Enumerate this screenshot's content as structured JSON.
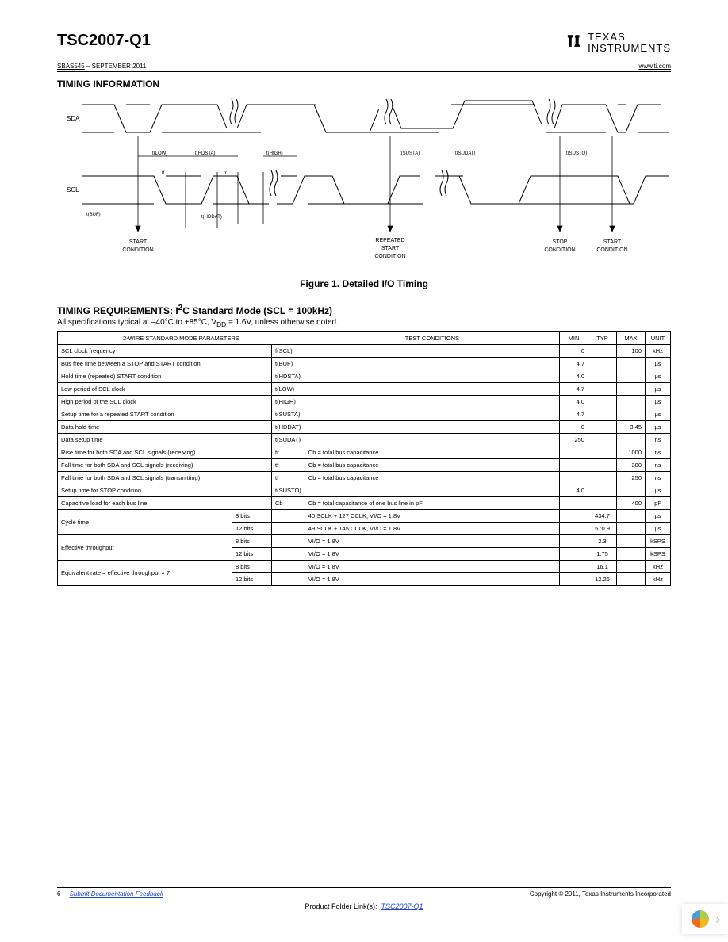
{
  "header": {
    "part_number": "TSC2007-Q1",
    "logo_text_top": "TEXAS",
    "logo_text_bottom": "INSTRUMENTS",
    "doc_id": "SBAS545",
    "doc_date": "– SEPTEMBER 2011",
    "site_url": "www.ti.com"
  },
  "section1": {
    "title": "TIMING INFORMATION",
    "diagram": {
      "sda_label": "SDA",
      "scl_label": "SCL",
      "start_cond": "START\nCONDITION",
      "repeated_start": "REPEATED\nSTART\nCONDITION",
      "stop_cond": "STOP\nCONDITION",
      "start_cond2": "START\nCONDITION",
      "t_buf": "t(BUF)",
      "t_low": "t(LOW)",
      "t_hdsta": "t(HDSTA)",
      "t_hddat": "t(HDDAT)",
      "t_high": "t(HIGH)",
      "t_susta": "t(SUSTA)",
      "t_sudat": "t(SUDAT)",
      "t_susto": "t(SUSTO)",
      "tf": "tf",
      "tr": "tr"
    },
    "caption": "Figure 1. Detailed I/O Timing"
  },
  "section2": {
    "title_prefix": "TIMING REQUIREMENTS: I",
    "title_super": "2",
    "title_suffix": "C Standard Mode (SCL = 100kHz)",
    "subtitle": "All specifications typical at –40°C to +85°C, V",
    "subtitle_sub": "DD",
    "subtitle_end": " = 1.6V, unless otherwise noted."
  },
  "table": {
    "headers": {
      "params": "2-WIRE STANDARD MODE PARAMETERS",
      "test": "TEST CONDITIONS",
      "min": "MIN",
      "typ": "TYP",
      "max": "MAX",
      "unit": "UNIT"
    },
    "rows": [
      {
        "param": "SCL clock frequency",
        "sym": "f(SCL)",
        "test": "",
        "min": "0",
        "typ": "",
        "max": "100",
        "unit": "kHz"
      },
      {
        "param": "Bus free time between a STOP and START condition",
        "sym": "t(BUF)",
        "test": "",
        "min": "4.7",
        "typ": "",
        "max": "",
        "unit": "µs"
      },
      {
        "param": "Hold time (repeated) START condition",
        "sym": "t(HDSTA)",
        "test": "",
        "min": "4.0",
        "typ": "",
        "max": "",
        "unit": "µs"
      },
      {
        "param": "Low period of SCL clock",
        "sym": "t(LOW)",
        "test": "",
        "min": "4.7",
        "typ": "",
        "max": "",
        "unit": "µs"
      },
      {
        "param": "High period of the SCL clock",
        "sym": "t(HIGH)",
        "test": "",
        "min": "4.0",
        "typ": "",
        "max": "",
        "unit": "µs"
      },
      {
        "param": "Setup time for a repeated START condition",
        "sym": "t(SUSTA)",
        "test": "",
        "min": "4.7",
        "typ": "",
        "max": "",
        "unit": "µs"
      },
      {
        "param": "Data hold time",
        "sym": "t(HDDAT)",
        "test": "",
        "min": "0",
        "typ": "",
        "max": "3.45",
        "unit": "µs"
      },
      {
        "param": "Data setup time",
        "sym": "t(SUDAT)",
        "test": "",
        "min": "250",
        "typ": "",
        "max": "",
        "unit": "ns"
      },
      {
        "param": "Rise time for both SDA and SCL signals (receiving)",
        "sym": "tr",
        "test": "Cb = total bus capacitance",
        "min": "",
        "typ": "",
        "max": "1000",
        "unit": "ns"
      },
      {
        "param": "Fall time for both SDA and SCL signals (receiving)",
        "sym": "tf",
        "test": "Cb = total bus capacitance",
        "min": "",
        "typ": "",
        "max": "300",
        "unit": "ns"
      },
      {
        "param": "Fall time for both SDA and SCL signals (transmitting)",
        "sym": "tf",
        "test": "Cb = total bus capacitance",
        "min": "",
        "typ": "",
        "max": "250",
        "unit": "ns"
      },
      {
        "param": "Setup time for STOP condition",
        "sym": "t(SUSTO)",
        "test": "",
        "min": "4.0",
        "typ": "",
        "max": "",
        "unit": "µs"
      },
      {
        "param": "Capacitive load for each bus line",
        "sym": "Cb",
        "test": "Cb = total capacitance of one bus line in pF",
        "min": "",
        "typ": "",
        "max": "400",
        "unit": "pF"
      }
    ],
    "group_rows": [
      {
        "param": "Cycle time",
        "bits": "8 bits",
        "test": "40 SCLK + 127 CCLK, VI/O = 1.8V",
        "typ": "434.7",
        "unit": "µs"
      },
      {
        "param": "",
        "bits": "12 bits",
        "test": "49 SCLK + 145 CCLK, VI/O = 1.8V",
        "typ": "570.9",
        "unit": "µs"
      },
      {
        "param": "Effective throughput",
        "bits": "8 bits",
        "test": "VI/O = 1.8V",
        "typ": "2.3",
        "unit": "kSPS"
      },
      {
        "param": "",
        "bits": "12 bits",
        "test": "VI/O = 1.8V",
        "typ": "1.75",
        "unit": "kSPS"
      },
      {
        "param": "Equivalent rate = effective throughput × 7",
        "bits": "8 bits",
        "test": "VI/O = 1.8V",
        "typ": "16.1",
        "unit": "kHz"
      },
      {
        "param": "",
        "bits": "12 bits",
        "test": "VI/O = 1.8V",
        "typ": "12.26",
        "unit": "kHz"
      }
    ]
  },
  "footer": {
    "page_num": "6",
    "feedback": "Submit Documentation Feedback",
    "copyright": "Copyright © 2011, Texas Instruments Incorporated",
    "folder_label": "Product Folder Link(s):",
    "folder_link": "TSC2007-Q1"
  },
  "colors": {
    "link": "#1a3fd4",
    "text": "#000000",
    "border": "#000000"
  }
}
